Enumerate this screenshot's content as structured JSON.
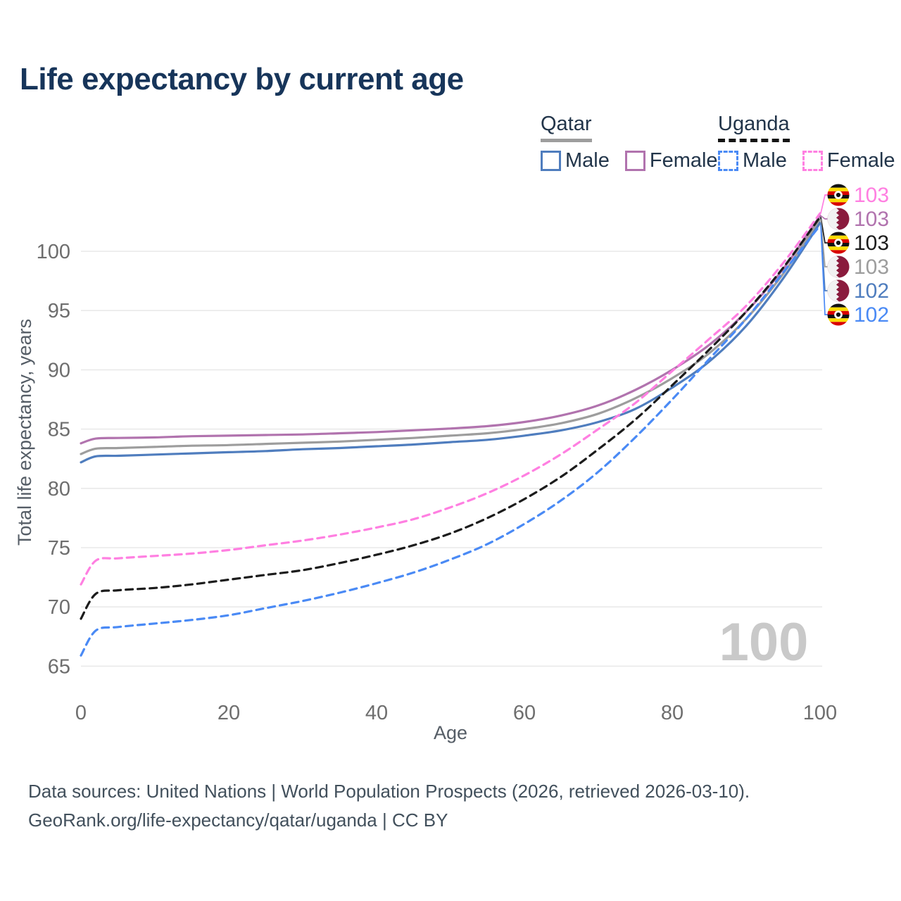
{
  "title": "Life expectancy by current age",
  "legend": {
    "qatar": {
      "label": "Qatar",
      "male_label": "Male",
      "female_label": "Female"
    },
    "uganda": {
      "label": "Uganda",
      "male_label": "Male",
      "female_label": "Female"
    }
  },
  "watermark": "100",
  "footer": {
    "line1": "Data sources: United Nations | World Population Prospects (2026, retrieved 2026-03-10).",
    "line2": "GeoRank.org/life-expectancy/qatar/uganda | CC BY"
  },
  "colors": {
    "qatar_male": "#4f7dbe",
    "qatar_female": "#b173ae",
    "qatar_both": "#9d9d9d",
    "uganda_male": "#4a8af5",
    "uganda_female": "#ff7fe1",
    "uganda_both": "#1c1c1c",
    "grid": "#e9e9e9",
    "tick_text": "#6e6e6e",
    "watermark": "#c9c9c9",
    "qatar_maroon": "#8a1b3d",
    "uganda_yellow": "#fcdc04",
    "uganda_red": "#d90000",
    "uganda_black": "#111111"
  },
  "chart_data": {
    "type": "line",
    "title": "Life expectancy by current age",
    "xlabel": "Age",
    "ylabel": "Total life expectancy, years",
    "xlim": [
      0,
      100
    ],
    "ylim": [
      64,
      104
    ],
    "x_ticks": [
      0,
      20,
      40,
      60,
      80,
      100
    ],
    "y_ticks": [
      65,
      70,
      75,
      80,
      85,
      90,
      95,
      100
    ],
    "grid": true,
    "legend_position": "top-right",
    "x": [
      0,
      2,
      5,
      10,
      15,
      20,
      25,
      30,
      35,
      40,
      45,
      50,
      55,
      60,
      65,
      70,
      75,
      80,
      85,
      90,
      95,
      100
    ],
    "series": [
      {
        "id": "qatar_female",
        "name": "Qatar Female",
        "style": "solid",
        "values": [
          83.8,
          84.2,
          84.25,
          84.3,
          84.4,
          84.45,
          84.5,
          84.55,
          84.65,
          84.75,
          84.9,
          85.05,
          85.25,
          85.6,
          86.15,
          87.0,
          88.3,
          90.0,
          92.1,
          94.9,
          98.5,
          103.0
        ]
      },
      {
        "id": "qatar_both",
        "name": "Qatar Both sexes",
        "style": "solid",
        "values": [
          82.9,
          83.35,
          83.4,
          83.5,
          83.6,
          83.65,
          83.75,
          83.85,
          83.95,
          84.1,
          84.25,
          84.45,
          84.65,
          85.0,
          85.5,
          86.3,
          87.6,
          89.3,
          91.4,
          94.3,
          98.1,
          102.7
        ]
      },
      {
        "id": "qatar_male",
        "name": "Qatar Male",
        "style": "solid",
        "values": [
          82.2,
          82.7,
          82.75,
          82.85,
          82.95,
          83.05,
          83.15,
          83.3,
          83.4,
          83.55,
          83.7,
          83.9,
          84.1,
          84.45,
          84.9,
          85.6,
          86.7,
          88.5,
          90.7,
          93.7,
          97.7,
          102.4
        ]
      },
      {
        "id": "uganda_male",
        "name": "Uganda Male",
        "style": "dashed",
        "values": [
          65.9,
          68.0,
          68.3,
          68.6,
          68.9,
          69.3,
          69.9,
          70.5,
          71.2,
          72.0,
          72.9,
          74.0,
          75.3,
          77.0,
          79.0,
          81.4,
          84.3,
          87.5,
          90.9,
          94.3,
          98.2,
          102.2
        ]
      },
      {
        "id": "uganda_both",
        "name": "Uganda Both sexes",
        "style": "dashed",
        "values": [
          69.0,
          71.1,
          71.4,
          71.6,
          71.9,
          72.3,
          72.7,
          73.1,
          73.7,
          74.4,
          75.2,
          76.2,
          77.5,
          79.1,
          81.0,
          83.3,
          85.8,
          88.7,
          91.7,
          94.9,
          98.6,
          102.9
        ]
      },
      {
        "id": "uganda_female",
        "name": "Uganda Female",
        "style": "dashed",
        "values": [
          71.9,
          73.9,
          74.1,
          74.3,
          74.5,
          74.8,
          75.2,
          75.6,
          76.1,
          76.7,
          77.4,
          78.4,
          79.6,
          81.1,
          82.9,
          85.0,
          87.2,
          89.9,
          92.6,
          95.4,
          99.0,
          103.2
        ]
      }
    ],
    "end_labels": [
      {
        "value": "103",
        "flag": "uganda",
        "series": "uganda_female"
      },
      {
        "value": "103",
        "flag": "qatar",
        "series": "qatar_female"
      },
      {
        "value": "103",
        "flag": "uganda",
        "series": "uganda_both"
      },
      {
        "value": "103",
        "flag": "qatar",
        "series": "qatar_both"
      },
      {
        "value": "102",
        "flag": "qatar",
        "series": "qatar_male"
      },
      {
        "value": "102",
        "flag": "uganda",
        "series": "uganda_male"
      }
    ]
  }
}
